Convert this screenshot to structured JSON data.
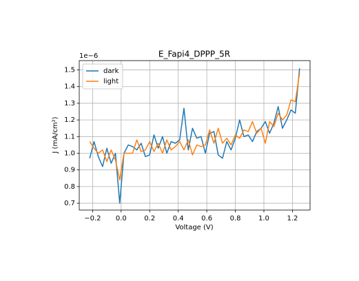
{
  "chart_data": {
    "type": "line",
    "title": "E_Fapi4_DPPP_5R",
    "xlabel": "Voltage (V)",
    "ylabel": "J (mA/cm²)",
    "y_offset_label": "1e−6",
    "x": [
      -0.22,
      -0.19,
      -0.16,
      -0.13,
      -0.1,
      -0.07,
      -0.04,
      -0.01,
      0.02,
      0.05,
      0.08,
      0.11,
      0.14,
      0.17,
      0.2,
      0.23,
      0.26,
      0.29,
      0.32,
      0.35,
      0.38,
      0.41,
      0.44,
      0.47,
      0.5,
      0.53,
      0.56,
      0.59,
      0.62,
      0.65,
      0.68,
      0.71,
      0.74,
      0.77,
      0.8,
      0.83,
      0.86,
      0.89,
      0.92,
      0.95,
      0.98,
      1.01,
      1.04,
      1.07,
      1.1,
      1.13,
      1.16,
      1.19,
      1.22,
      1.25
    ],
    "series": [
      {
        "name": "dark",
        "color": "#1f77b4",
        "values": [
          0.97,
          1.07,
          0.98,
          0.92,
          1.03,
          0.94,
          1.0,
          0.7,
          1.0,
          1.05,
          1.04,
          1.02,
          1.06,
          0.98,
          0.99,
          1.11,
          1.03,
          1.1,
          1.0,
          1.07,
          1.06,
          1.08,
          1.27,
          1.02,
          1.15,
          1.09,
          1.1,
          1.0,
          1.12,
          1.13,
          0.99,
          0.97,
          1.07,
          1.02,
          1.09,
          1.2,
          1.1,
          1.11,
          1.07,
          1.13,
          1.15,
          1.19,
          1.12,
          1.18,
          1.28,
          1.15,
          1.2,
          1.26,
          1.24,
          1.51
        ]
      },
      {
        "name": "light",
        "color": "#ff7f0e",
        "values": [
          1.07,
          1.03,
          1.0,
          1.02,
          0.95,
          1.02,
          0.96,
          0.84,
          1.0,
          1.0,
          1.0,
          1.08,
          1.01,
          1.02,
          1.07,
          1.01,
          1.06,
          1.0,
          1.08,
          1.02,
          1.04,
          1.07,
          1.02,
          1.08,
          0.99,
          1.05,
          1.04,
          1.05,
          1.14,
          1.06,
          1.15,
          1.06,
          1.09,
          1.05,
          1.11,
          1.09,
          1.14,
          1.13,
          1.19,
          1.12,
          1.15,
          1.06,
          1.19,
          1.16,
          1.24,
          1.2,
          1.23,
          1.32,
          1.31,
          1.48
        ]
      }
    ],
    "xlim": [
      -0.2935,
      1.3235
    ],
    "xticks": [
      {
        "value": -0.2,
        "label": "−0.2"
      },
      {
        "value": 0,
        "label": "0.0"
      },
      0.2,
      0.4,
      0.6,
      0.8,
      {
        "value": 1,
        "label": "1.0"
      },
      1.2
    ],
    "ylim": [
      0.659,
      1.556
    ],
    "yticks": [
      0.7,
      0.8,
      0.9,
      {
        "value": 1,
        "label": "1.0"
      },
      1.1,
      1.2,
      1.3,
      1.4,
      1.5
    ],
    "grid": true,
    "legend": "upper left"
  }
}
